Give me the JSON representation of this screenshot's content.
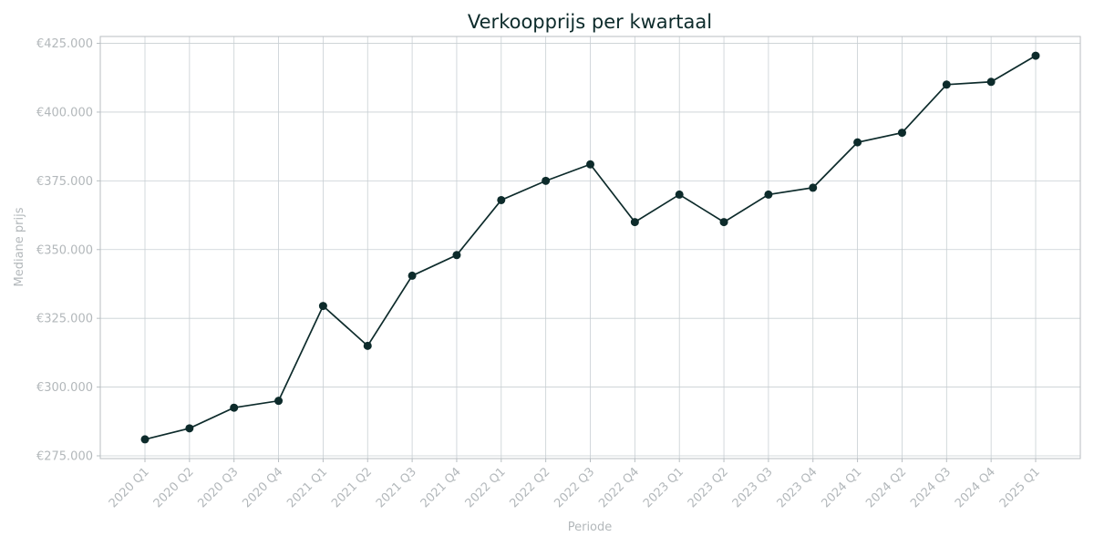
{
  "chart_data": {
    "type": "line",
    "title": "Verkoopprijs per kwartaal",
    "xlabel": "Periode",
    "ylabel": "Mediane prijs",
    "categories": [
      "2020 Q1",
      "2020 Q2",
      "2020 Q3",
      "2020 Q4",
      "2021 Q1",
      "2021 Q2",
      "2021 Q3",
      "2021 Q4",
      "2022 Q1",
      "2022 Q2",
      "2022 Q3",
      "2022 Q4",
      "2023 Q1",
      "2023 Q2",
      "2023 Q3",
      "2023 Q4",
      "2024 Q1",
      "2024 Q2",
      "2024 Q3",
      "2024 Q4",
      "2025 Q1"
    ],
    "values": [
      281000,
      285000,
      292500,
      295000,
      329500,
      315000,
      340500,
      348000,
      368000,
      375000,
      381000,
      360000,
      370000,
      360000,
      370000,
      372500,
      389000,
      392500,
      410000,
      411000,
      420500
    ],
    "yticks": [
      275000,
      300000,
      325000,
      350000,
      375000,
      400000,
      425000
    ],
    "ytick_labels": [
      "€275.000",
      "€300.000",
      "€325.000",
      "€350.000",
      "€375.000",
      "€400.000",
      "€425.000"
    ],
    "ylim": [
      274000,
      427500
    ],
    "grid": true,
    "colors": {
      "line": "#0d2b2b",
      "grid": "#c8cfd3",
      "text": "#b3b8bb",
      "title": "#0d2b2b"
    }
  }
}
